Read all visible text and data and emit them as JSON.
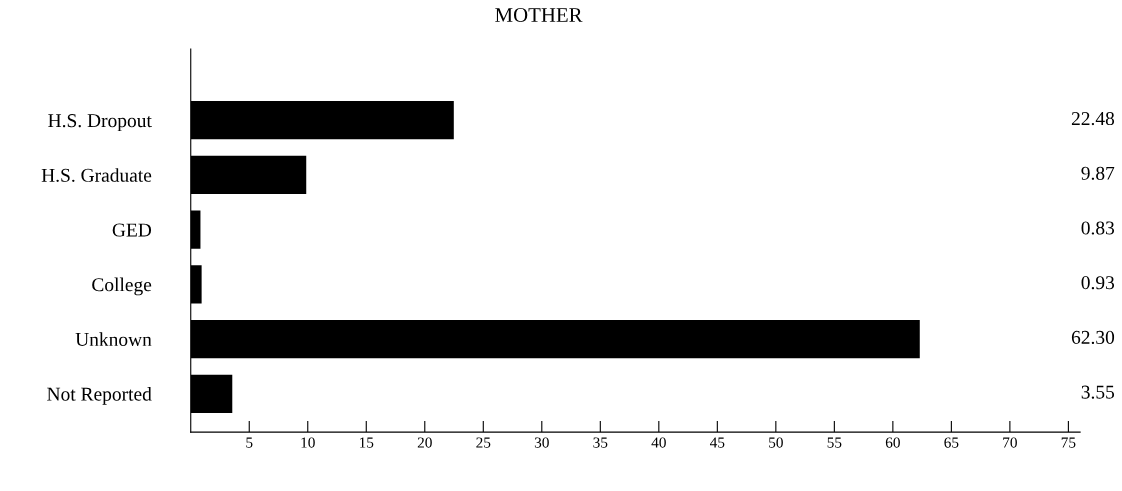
{
  "chart_data": {
    "type": "bar",
    "orientation": "horizontal",
    "title": "MOTHER",
    "categories": [
      "H.S. Dropout",
      "H.S. Graduate",
      "GED",
      "College",
      "Unknown",
      "Not Reported"
    ],
    "values": [
      22.48,
      9.87,
      0.83,
      0.93,
      62.3,
      3.55
    ],
    "value_labels": [
      "22.48",
      "9.87",
      "0.83",
      "0.93",
      "62.30",
      "3.55"
    ],
    "color": "#000000",
    "xlim": [
      0,
      76
    ],
    "xticks": [
      5,
      10,
      15,
      20,
      25,
      30,
      35,
      40,
      45,
      50,
      55,
      60,
      65,
      70,
      75
    ],
    "grid": false,
    "legend": false
  }
}
